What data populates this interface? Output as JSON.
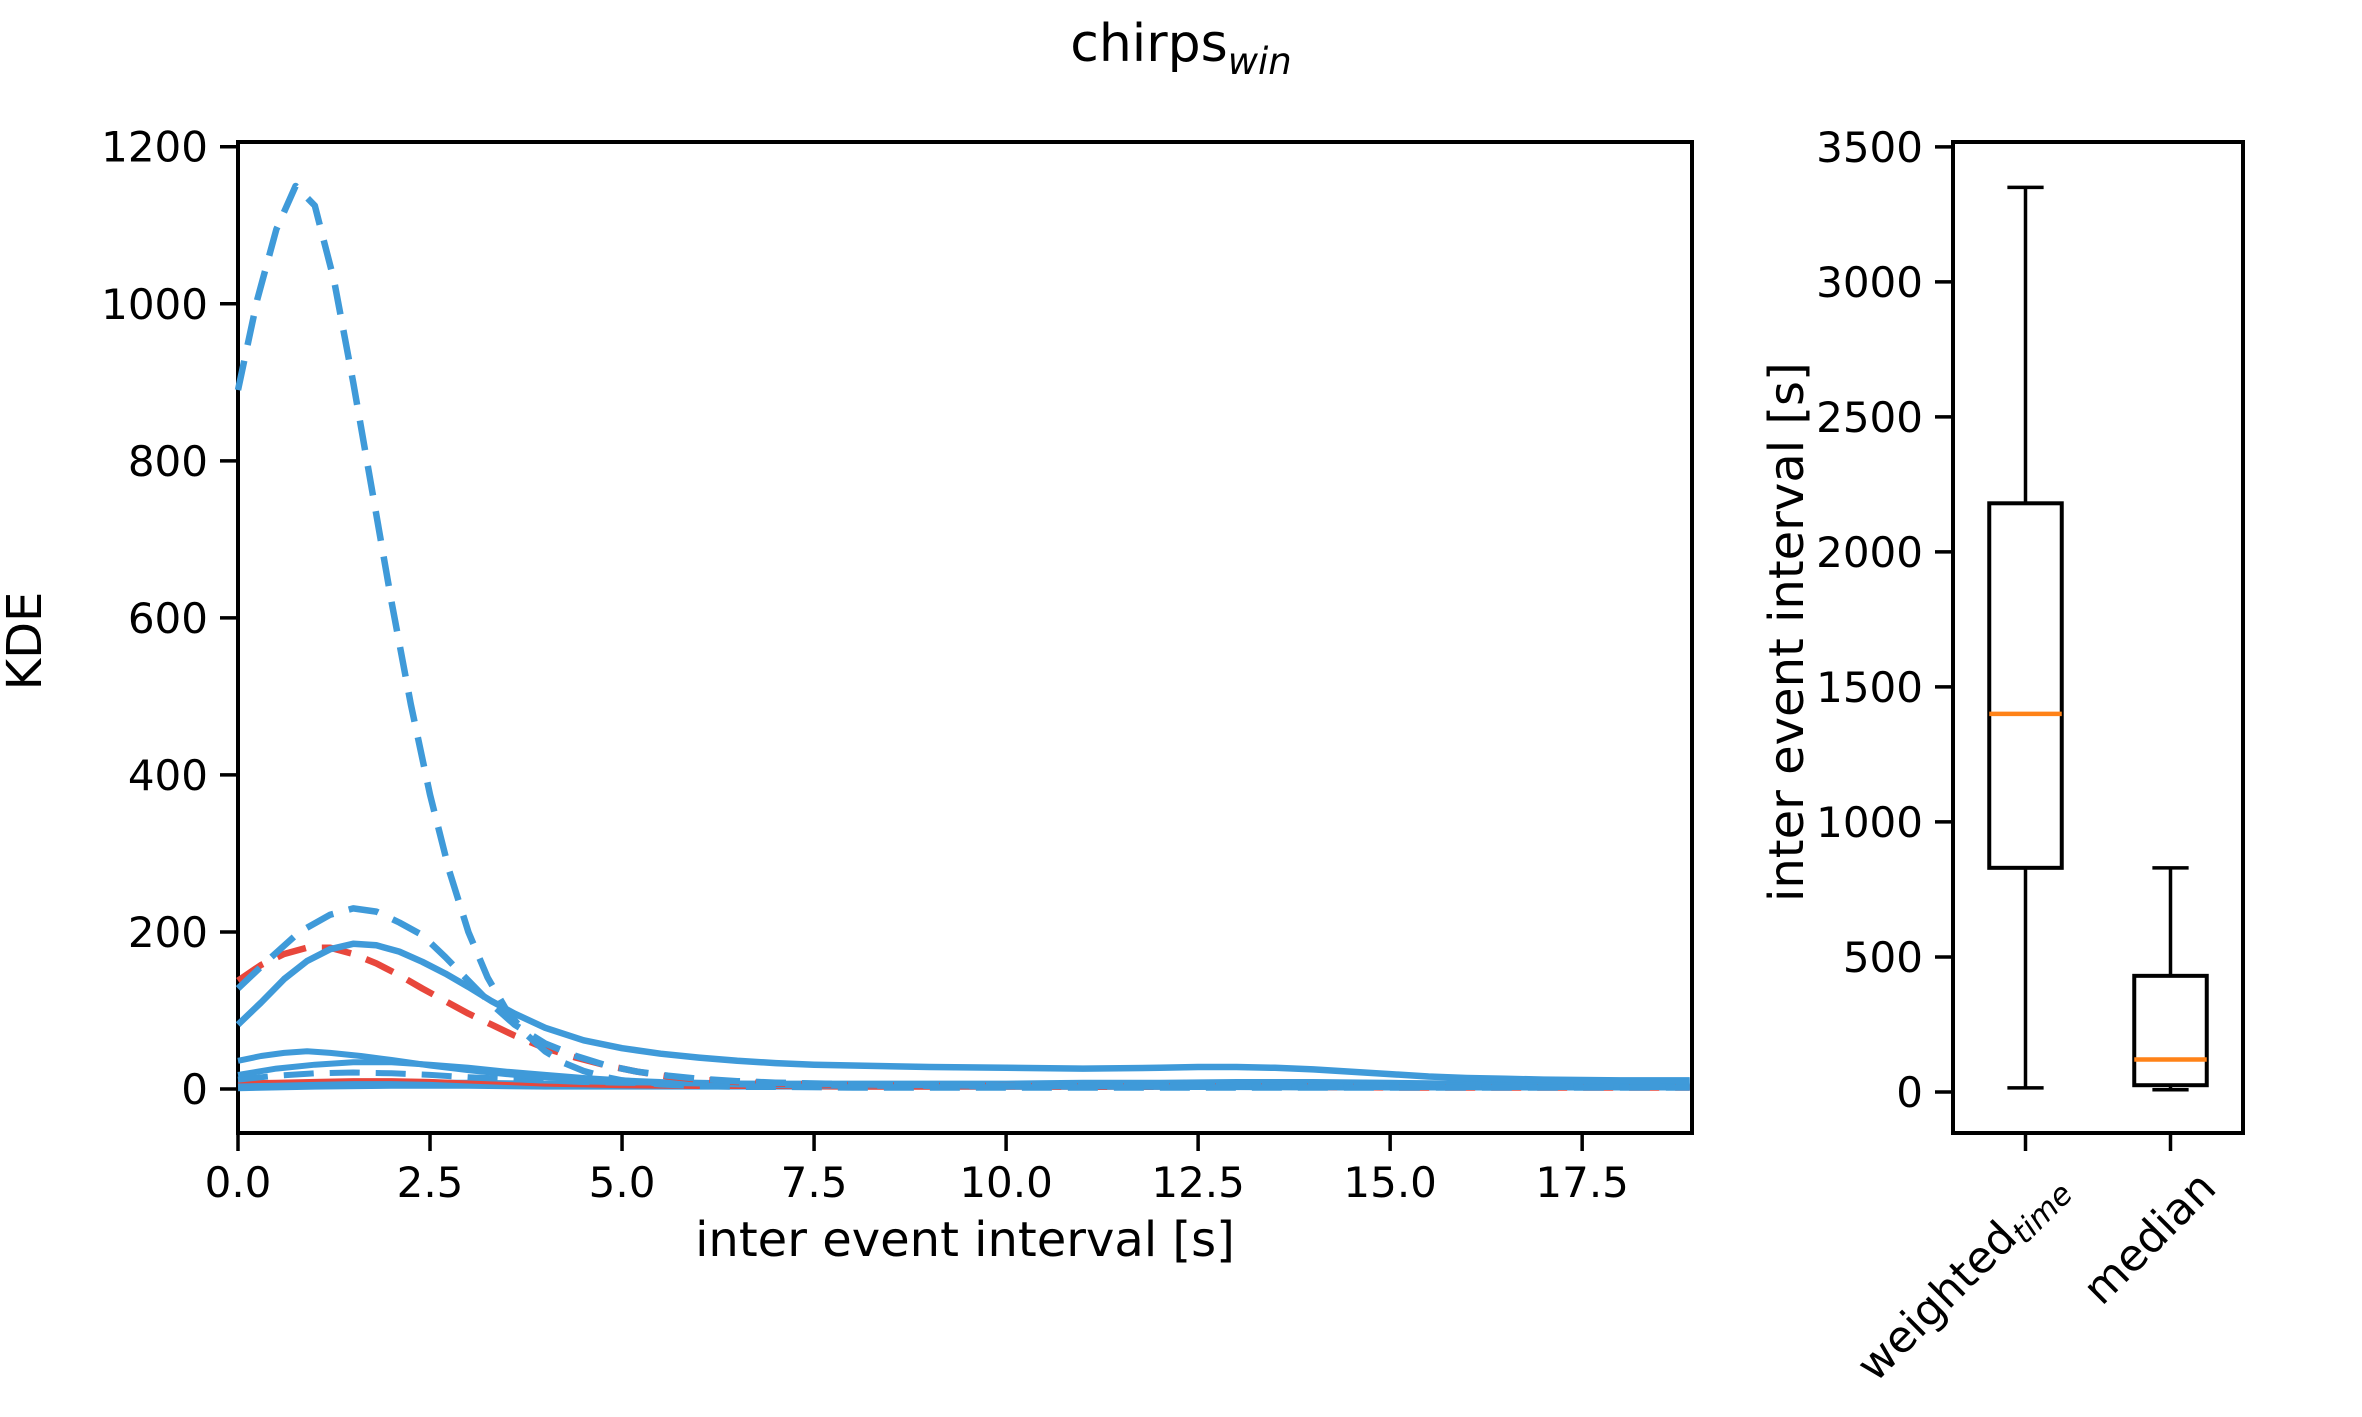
{
  "title": {
    "main": "chirps",
    "sub": "win"
  },
  "colors": {
    "blue": "#3f9ad9",
    "red": "#e8473c",
    "median_orange": "#ff8217",
    "axis_black": "#000000",
    "background": "#ffffff"
  },
  "chart_data": [
    {
      "type": "line",
      "name": "kde-curves",
      "xlabel": "inter event interval [s]",
      "ylabel": "KDE",
      "xlim": [
        0,
        18.93
      ],
      "ylim": [
        -56,
        1206
      ],
      "grid": false,
      "legend": "none",
      "xticks": {
        "values": [
          0,
          2.5,
          5,
          7.5,
          10,
          12.5,
          15,
          17.5
        ],
        "labels": [
          "0.0",
          "2.5",
          "5.0",
          "7.5",
          "10.0",
          "12.5",
          "15.0",
          "17.5"
        ]
      },
      "yticks": {
        "values": [
          0,
          200,
          400,
          600,
          800,
          1000,
          1200
        ],
        "labels": [
          "0",
          "200",
          "400",
          "600",
          "800",
          "1000",
          "1200"
        ]
      },
      "series": [
        {
          "name": "blue-solid-band",
          "color": "#3f9ad9",
          "dash": false,
          "width": 9,
          "points": [
            [
              0,
              3
            ],
            [
              1,
              5
            ],
            [
              2,
              6
            ],
            [
              3,
              6
            ],
            [
              4,
              5
            ],
            [
              5,
              5
            ],
            [
              6,
              5
            ],
            [
              7,
              5
            ],
            [
              8,
              5
            ],
            [
              9,
              5
            ],
            [
              10,
              5
            ],
            [
              11,
              6
            ],
            [
              12,
              6
            ],
            [
              13,
              7
            ],
            [
              14,
              7
            ],
            [
              15,
              6
            ],
            [
              16,
              5
            ],
            [
              17,
              5
            ],
            [
              18,
              6
            ],
            [
              18.9,
              8
            ]
          ]
        },
        {
          "name": "red-solid-thin",
          "color": "#e8473c",
          "dash": false,
          "width": 3,
          "points": [
            [
              0,
              9
            ],
            [
              0.5,
              10
            ],
            [
              1,
              11
            ],
            [
              1.5,
              12
            ],
            [
              2,
              12
            ],
            [
              2.5,
              11
            ],
            [
              3,
              9
            ],
            [
              3.5,
              7
            ],
            [
              4,
              5
            ],
            [
              4.5,
              4
            ],
            [
              5,
              3
            ],
            [
              6,
              2
            ],
            [
              7,
              2
            ],
            [
              8,
              1
            ],
            [
              10,
              1
            ],
            [
              12,
              1
            ],
            [
              14,
              1
            ],
            [
              16,
              1
            ],
            [
              18.9,
              1
            ]
          ]
        },
        {
          "name": "blue-dashed-low",
          "color": "#3f9ad9",
          "dash": true,
          "width": 6,
          "points": [
            [
              0,
              12
            ],
            [
              0.5,
              17
            ],
            [
              1,
              20
            ],
            [
              1.5,
              21
            ],
            [
              2,
              20
            ],
            [
              2.5,
              18
            ],
            [
              3,
              15
            ],
            [
              3.5,
              13
            ],
            [
              4,
              11
            ],
            [
              4.5,
              9
            ],
            [
              5,
              8
            ],
            [
              6,
              7
            ],
            [
              7,
              6
            ],
            [
              8,
              5
            ],
            [
              9,
              5
            ],
            [
              10,
              5
            ],
            [
              11,
              4
            ],
            [
              12,
              4
            ],
            [
              13,
              4
            ],
            [
              14,
              4
            ],
            [
              15,
              4
            ],
            [
              16,
              4
            ],
            [
              17,
              4
            ],
            [
              18,
              4
            ],
            [
              18.9,
              4
            ]
          ]
        },
        {
          "name": "blue-solid-low-2",
          "color": "#3f9ad9",
          "dash": false,
          "width": 6,
          "points": [
            [
              0,
              18
            ],
            [
              0.5,
              26
            ],
            [
              1,
              31
            ],
            [
              1.5,
              34
            ],
            [
              2,
              34
            ],
            [
              2.5,
              31
            ],
            [
              3,
              27
            ],
            [
              3.5,
              22
            ],
            [
              4,
              18
            ],
            [
              4.5,
              14
            ],
            [
              5,
              11
            ],
            [
              5.5,
              9
            ],
            [
              6,
              8
            ],
            [
              7,
              6
            ],
            [
              8,
              5
            ],
            [
              9,
              4
            ],
            [
              10,
              4
            ],
            [
              12,
              3
            ],
            [
              14,
              3
            ],
            [
              16,
              2
            ],
            [
              18.9,
              2
            ]
          ]
        },
        {
          "name": "blue-solid-low-1",
          "color": "#3f9ad9",
          "dash": false,
          "width": 6,
          "points": [
            [
              0,
              36
            ],
            [
              0.3,
              42
            ],
            [
              0.6,
              46
            ],
            [
              0.9,
              48
            ],
            [
              1.2,
              46
            ],
            [
              1.6,
              42
            ],
            [
              2,
              37
            ],
            [
              2.5,
              30
            ],
            [
              3,
              24
            ],
            [
              3.5,
              19
            ],
            [
              4,
              15
            ],
            [
              4.5,
              12
            ],
            [
              5,
              10
            ],
            [
              5.5,
              8
            ],
            [
              6,
              7
            ],
            [
              7,
              5
            ],
            [
              8,
              4
            ],
            [
              9,
              4
            ],
            [
              10,
              3
            ],
            [
              12,
              3
            ],
            [
              14,
              2
            ],
            [
              16,
              2
            ],
            [
              18.9,
              2
            ]
          ]
        },
        {
          "name": "red-dashed",
          "color": "#e8473c",
          "dash": true,
          "width": 6.5,
          "points": [
            [
              0,
              138
            ],
            [
              0.3,
              158
            ],
            [
              0.6,
              172
            ],
            [
              0.9,
              180
            ],
            [
              1.2,
              180
            ],
            [
              1.5,
              172
            ],
            [
              1.8,
              160
            ],
            [
              2.1,
              145
            ],
            [
              2.4,
              128
            ],
            [
              2.7,
              112
            ],
            [
              3,
              96
            ],
            [
              3.3,
              82
            ],
            [
              3.6,
              68
            ],
            [
              4,
              52
            ],
            [
              4.4,
              40
            ],
            [
              4.8,
              30
            ],
            [
              5.2,
              22
            ],
            [
              5.6,
              16
            ],
            [
              6,
              12
            ],
            [
              6.5,
              9
            ],
            [
              7,
              7
            ],
            [
              8,
              5
            ],
            [
              9,
              4
            ],
            [
              10,
              4
            ],
            [
              11,
              3
            ],
            [
              12,
              3
            ],
            [
              13,
              3
            ],
            [
              14,
              3
            ],
            [
              15,
              2
            ],
            [
              16,
              2
            ],
            [
              17,
              2
            ],
            [
              18,
              2
            ],
            [
              18.9,
              2
            ]
          ]
        },
        {
          "name": "blue-solid-main",
          "color": "#3f9ad9",
          "dash": false,
          "width": 6.5,
          "points": [
            [
              0,
              82
            ],
            [
              0.3,
              110
            ],
            [
              0.6,
              140
            ],
            [
              0.9,
              163
            ],
            [
              1.2,
              178
            ],
            [
              1.5,
              185
            ],
            [
              1.8,
              183
            ],
            [
              2.1,
              175
            ],
            [
              2.4,
              162
            ],
            [
              2.7,
              147
            ],
            [
              3,
              130
            ],
            [
              3.3,
              112
            ],
            [
              3.6,
              96
            ],
            [
              4,
              78
            ],
            [
              4.5,
              62
            ],
            [
              5,
              52
            ],
            [
              5.5,
              45
            ],
            [
              6,
              40
            ],
            [
              6.5,
              36
            ],
            [
              7,
              33
            ],
            [
              7.5,
              31
            ],
            [
              8,
              30
            ],
            [
              9,
              28
            ],
            [
              10,
              27
            ],
            [
              11,
              26
            ],
            [
              12,
              27
            ],
            [
              12.5,
              28
            ],
            [
              13,
              28
            ],
            [
              13.5,
              27
            ],
            [
              14,
              25
            ],
            [
              14.5,
              22
            ],
            [
              15,
              19
            ],
            [
              15.5,
              16
            ],
            [
              16,
              14
            ],
            [
              16.5,
              13
            ],
            [
              17,
              12
            ],
            [
              18,
              11
            ],
            [
              18.9,
              11
            ]
          ]
        },
        {
          "name": "blue-dashed-mid",
          "color": "#3f9ad9",
          "dash": true,
          "width": 6.5,
          "points": [
            [
              0,
              128
            ],
            [
              0.4,
              165
            ],
            [
              0.8,
              200
            ],
            [
              1.2,
              222
            ],
            [
              1.5,
              230
            ],
            [
              1.8,
              226
            ],
            [
              2.1,
              212
            ],
            [
              2.4,
              196
            ],
            [
              2.7,
              168
            ],
            [
              3,
              138
            ],
            [
              3.3,
              108
            ],
            [
              3.6,
              82
            ],
            [
              4,
              58
            ],
            [
              4.4,
              42
            ],
            [
              4.8,
              30
            ],
            [
              5.2,
              22
            ],
            [
              5.6,
              17
            ],
            [
              6,
              13
            ],
            [
              6.5,
              10
            ],
            [
              7,
              8
            ],
            [
              8,
              6
            ],
            [
              9,
              5
            ],
            [
              10,
              4
            ],
            [
              11,
              4
            ],
            [
              12,
              3
            ],
            [
              13,
              3
            ],
            [
              14,
              3
            ],
            [
              15,
              3
            ],
            [
              16,
              3
            ],
            [
              17,
              3
            ],
            [
              18,
              3
            ],
            [
              18.9,
              3
            ]
          ]
        },
        {
          "name": "blue-dashed-big",
          "color": "#3f9ad9",
          "dash": true,
          "width": 6.5,
          "points": [
            [
              0,
              890
            ],
            [
              0.25,
              1005
            ],
            [
              0.5,
              1095
            ],
            [
              0.75,
              1150
            ],
            [
              1,
              1125
            ],
            [
              1.25,
              1030
            ],
            [
              1.5,
              900
            ],
            [
              1.75,
              760
            ],
            [
              2,
              620
            ],
            [
              2.25,
              490
            ],
            [
              2.5,
              375
            ],
            [
              2.75,
              278
            ],
            [
              3,
              200
            ],
            [
              3.25,
              142
            ],
            [
              3.5,
              100
            ],
            [
              3.75,
              70
            ],
            [
              4,
              48
            ],
            [
              4.25,
              33
            ],
            [
              4.5,
              23
            ],
            [
              4.75,
              16
            ],
            [
              5,
              11
            ],
            [
              5.5,
              6
            ],
            [
              6,
              4
            ],
            [
              6.5,
              3
            ],
            [
              7,
              3
            ],
            [
              8,
              2
            ],
            [
              9,
              2
            ],
            [
              10,
              2
            ],
            [
              11,
              2
            ],
            [
              12,
              2
            ],
            [
              13,
              2
            ],
            [
              14,
              2
            ],
            [
              15,
              2
            ],
            [
              16,
              2
            ],
            [
              17,
              2
            ],
            [
              18,
              2
            ],
            [
              18.9,
              2
            ]
          ]
        }
      ]
    },
    {
      "type": "box",
      "name": "iei-boxplot",
      "ylabel": "inter event interval [s]",
      "ylim": [
        -152,
        3518
      ],
      "grid": false,
      "yticks": {
        "values": [
          0,
          500,
          1000,
          1500,
          2000,
          2500,
          3000,
          3500
        ],
        "labels": [
          "0",
          "500",
          "1000",
          "1500",
          "2000",
          "2500",
          "3000",
          "3500"
        ]
      },
      "categories": [
        {
          "main": "weighted",
          "sub": "time"
        },
        {
          "main": "median",
          "sub": ""
        }
      ],
      "boxes": [
        {
          "whislo": 15,
          "q1": 830,
          "med": 1400,
          "q3": 2180,
          "whishi": 3350
        },
        {
          "whislo": 8,
          "q1": 25,
          "med": 120,
          "q3": 430,
          "whishi": 830
        }
      ],
      "box_color": "#000000",
      "median_color": "#ff8217"
    }
  ]
}
